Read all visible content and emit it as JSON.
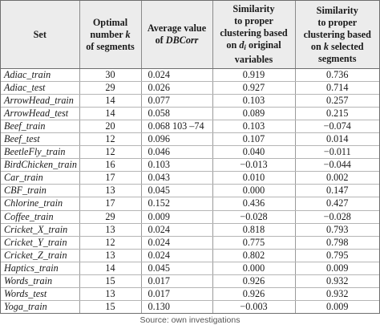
{
  "headers": {
    "set": "Set",
    "optimal": [
      "Optimal",
      "number ",
      "k",
      "of segments"
    ],
    "average": [
      "Average value",
      "of ",
      "DBCorr"
    ],
    "similarity_original": [
      "Similarity",
      "to proper",
      "clustering based",
      "on ",
      "d",
      "i",
      " original",
      "variables"
    ],
    "similarity_selected": [
      "Similarity",
      "to proper",
      "clustering based",
      "on ",
      "k",
      " selected",
      "segments"
    ]
  },
  "rows": [
    {
      "set": "Adiac_train",
      "k": "30",
      "avg": "0.024",
      "sim_orig": "0.919",
      "sim_sel": "0.736"
    },
    {
      "set": "Adiac_test",
      "k": "29",
      "avg": "0.026",
      "sim_orig": "0.927",
      "sim_sel": "0.714"
    },
    {
      "set": "ArrowHead_train",
      "k": "14",
      "avg": "0.077",
      "sim_orig": "0.103",
      "sim_sel": "0.257"
    },
    {
      "set": "ArrowHead_test",
      "k": "14",
      "avg": "0.058",
      "sim_orig": "0.089",
      "sim_sel": "0.215"
    },
    {
      "set": "Beef_train",
      "k": "20",
      "avg": "0.068 103 –74",
      "sim_orig": "0.103",
      "sim_sel": "−0.074"
    },
    {
      "set": "Beef_test",
      "k": "12",
      "avg": "0.096",
      "sim_orig": "0.107",
      "sim_sel": "0.014"
    },
    {
      "set": "BeetleFly_train",
      "k": "12",
      "avg": "0.046",
      "sim_orig": "0.040",
      "sim_sel": "−0.011"
    },
    {
      "set": "BirdChicken_train",
      "k": "16",
      "avg": "0.103",
      "sim_orig": "−0.013",
      "sim_sel": "−0.044"
    },
    {
      "set": "Car_train",
      "k": "17",
      "avg": "0.043",
      "sim_orig": "0.010",
      "sim_sel": "0.002"
    },
    {
      "set": "CBF_train",
      "k": "13",
      "avg": "0.045",
      "sim_orig": "0.000",
      "sim_sel": "0.147"
    },
    {
      "set": "Chlorine_train",
      "k": "17",
      "avg": "0.152",
      "sim_orig": "0.436",
      "sim_sel": "0.427"
    },
    {
      "set": "Coffee_train",
      "k": "29",
      "avg": "0.009",
      "sim_orig": "−0.028",
      "sim_sel": "−0.028"
    },
    {
      "set": "Cricket_X_train",
      "k": "13",
      "avg": "0.024",
      "sim_orig": "0.818",
      "sim_sel": "0.793"
    },
    {
      "set": "Cricket_Y_train",
      "k": "12",
      "avg": "0.024",
      "sim_orig": "0.775",
      "sim_sel": "0.798"
    },
    {
      "set": "Cricket_Z_train",
      "k": "13",
      "avg": "0.024",
      "sim_orig": "0.802",
      "sim_sel": "0.795"
    },
    {
      "set": "Haptics_train",
      "k": "14",
      "avg": "0.045",
      "sim_orig": "0.000",
      "sim_sel": "0.009"
    },
    {
      "set": "Words_train",
      "k": "15",
      "avg": "0.017",
      "sim_orig": "0.926",
      "sim_sel": "0.932"
    },
    {
      "set": "Words_test",
      "k": "13",
      "avg": "0.017",
      "sim_orig": "0.926",
      "sim_sel": "0.932"
    },
    {
      "set": "Yoga_train",
      "k": "15",
      "avg": "0.130",
      "sim_orig": "−0.003",
      "sim_sel": "0.009"
    }
  ],
  "source": "Source: own investigations"
}
